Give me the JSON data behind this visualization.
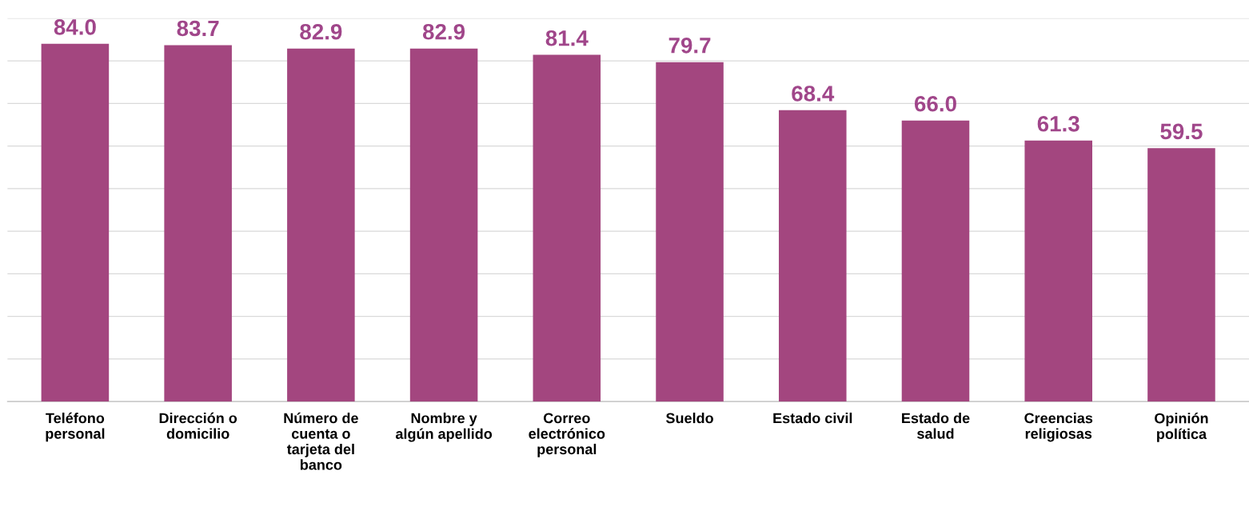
{
  "chart_data": {
    "type": "bar",
    "categories": [
      "Teléfono\npersonal",
      "Dirección o\ndomicilio",
      "Número de\ncuenta o\ntarjeta del\nbanco",
      "Nombre y\nalgún apellido",
      "Correo\nelectrónico\npersonal",
      "Sueldo",
      "Estado civil",
      "Estado de\nsalud",
      "Creencias\nreligiosas",
      "Opinión\npolítica"
    ],
    "values": [
      84.0,
      83.7,
      82.9,
      82.9,
      81.4,
      79.7,
      68.4,
      66.0,
      61.3,
      59.5
    ],
    "color": "#a3467f",
    "value_labels": [
      "84.0",
      "83.7",
      "82.9",
      "82.9",
      "81.4",
      "79.7",
      "68.4",
      "66.0",
      "61.3",
      "59.5"
    ],
    "ylim": [
      0,
      90
    ],
    "yticks": [
      {
        "value": 0,
        "label": null
      },
      {
        "value": 10,
        "label": null
      },
      {
        "value": 20,
        "label": null
      },
      {
        "value": 30,
        "label": null
      },
      {
        "value": 40,
        "label": null
      },
      {
        "value": 50,
        "label": null
      },
      {
        "value": 60,
        "label": null
      },
      {
        "value": 70,
        "label": null
      },
      {
        "value": 80,
        "label": null
      },
      {
        "value": 90,
        "label": null
      }
    ],
    "tick_labels": "x",
    "grid": "y"
  }
}
